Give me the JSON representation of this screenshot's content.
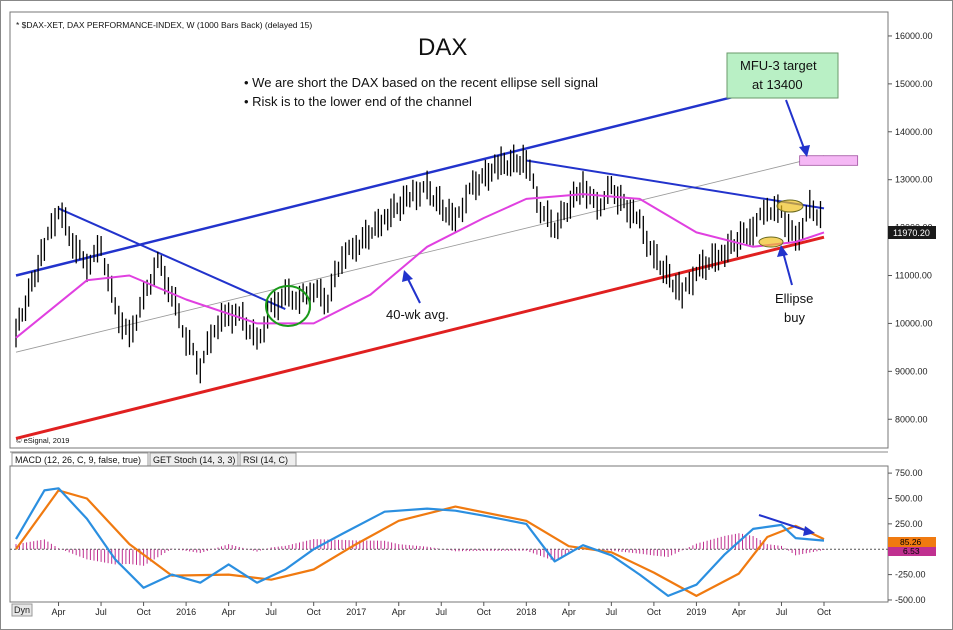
{
  "window": {
    "header": "* $DAX-XET, DAX PERFORMANCE-INDEX, W (1000 Bars Back) (delayed 15)",
    "copyright": "© eSignal, 2019"
  },
  "annotations": {
    "title": "DAX",
    "bullets": [
      "• We are short the DAX based on the recent ellipse sell signal",
      "• Risk is to the lower end of the channel"
    ],
    "target_box": [
      "MFU-3 target",
      "at 13400"
    ],
    "ma_label": "40-wk avg.",
    "ellipse_label": [
      "Ellipse",
      "buy"
    ],
    "colors": {
      "price": "#000000",
      "ma40": "#e040e0",
      "long_ma": "#9a9a9a",
      "upper_channel": "#2233cc",
      "lower_channel": "#e02020",
      "target_box_fill": "#b9f0c5",
      "target_zone": "#f5b8f5",
      "macd": "#2b8fe0",
      "signal": "#f07a10",
      "hist": "#c03090",
      "last_price_bg": "#1a1a1a"
    }
  },
  "panels": {
    "tabs": [
      "MACD (12, 26, C, 9, false, true)",
      "GET Stoch (14, 3, 3)",
      "RSI (14, C)"
    ],
    "dyn_label": "Dyn",
    "x_ticks": [
      "Apr",
      "Jul",
      "Oct",
      "2016",
      "Apr",
      "Jul",
      "Oct",
      "2017",
      "Apr",
      "Jul",
      "Oct",
      "2018",
      "Apr",
      "Jul",
      "Oct",
      "2019",
      "Apr",
      "Jul",
      "Oct"
    ]
  },
  "chart_data": [
    {
      "type": "candlestick",
      "title": "DAX",
      "y_ticks": [
        "16000.00",
        "15000.00",
        "14000.00",
        "13000.00",
        "12000.00",
        "11000.00",
        "10000.00",
        "9000.00",
        "8000.00"
      ],
      "ylim": [
        7400,
        16500
      ],
      "last_price": "11970.20",
      "x_start": "2015-01",
      "x_end": "2019-10",
      "price_path": [
        [
          "2015-01",
          9800
        ],
        [
          "2015-03",
          11600
        ],
        [
          "2015-04",
          12400
        ],
        [
          "2015-05",
          11700
        ],
        [
          "2015-06",
          11200
        ],
        [
          "2015-07",
          11600
        ],
        [
          "2015-08",
          10300
        ],
        [
          "2015-09",
          9700
        ],
        [
          "2015-10",
          10500
        ],
        [
          "2015-11",
          11300
        ],
        [
          "2015-12",
          10600
        ],
        [
          "2016-01",
          9700
        ],
        [
          "2016-02",
          9100
        ],
        [
          "2016-03",
          9900
        ],
        [
          "2016-04",
          10200
        ],
        [
          "2016-05",
          10100
        ],
        [
          "2016-06",
          9600
        ],
        [
          "2016-07",
          10300
        ],
        [
          "2016-08",
          10600
        ],
        [
          "2016-09",
          10500
        ],
        [
          "2016-10",
          10700
        ],
        [
          "2016-11",
          10500
        ],
        [
          "2016-12",
          11400
        ],
        [
          "2017-01",
          11600
        ],
        [
          "2017-03",
          12200
        ],
        [
          "2017-05",
          12700
        ],
        [
          "2017-06",
          12800
        ],
        [
          "2017-08",
          12100
        ],
        [
          "2017-09",
          12800
        ],
        [
          "2017-11",
          13300
        ],
        [
          "2018-01",
          13400
        ],
        [
          "2018-02",
          12400
        ],
        [
          "2018-03",
          12000
        ],
        [
          "2018-05",
          12900
        ],
        [
          "2018-06",
          12400
        ],
        [
          "2018-07",
          12800
        ],
        [
          "2018-09",
          12100
        ],
        [
          "2018-10",
          11400
        ],
        [
          "2018-12",
          10600
        ],
        [
          "2019-01",
          11100
        ],
        [
          "2019-03",
          11500
        ],
        [
          "2019-05",
          12000
        ],
        [
          "2019-06",
          12400
        ],
        [
          "2019-07",
          12300
        ],
        [
          "2019-08",
          11700
        ],
        [
          "2019-09",
          12400
        ],
        [
          "2019-10",
          12200
        ]
      ],
      "ma40_path": [
        [
          "2015-01",
          9700
        ],
        [
          "2015-06",
          10900
        ],
        [
          "2015-09",
          11000
        ],
        [
          "2016-01",
          10500
        ],
        [
          "2016-06",
          10000
        ],
        [
          "2016-10",
          10000
        ],
        [
          "2017-02",
          10600
        ],
        [
          "2017-06",
          11600
        ],
        [
          "2017-10",
          12200
        ],
        [
          "2018-01",
          12600
        ],
        [
          "2018-05",
          12700
        ],
        [
          "2018-09",
          12600
        ],
        [
          "2019-01",
          11900
        ],
        [
          "2019-05",
          11600
        ],
        [
          "2019-08",
          11700
        ],
        [
          "2019-10",
          11900
        ]
      ],
      "long_ma_path": [
        [
          "2015-01",
          9400
        ],
        [
          "2019-10",
          13500
        ]
      ],
      "channel_upper": [
        [
          "2015-01",
          11000
        ],
        [
          "2019-10",
          15200
        ]
      ],
      "channel_lower": [
        [
          "2015-01",
          7600
        ],
        [
          "2019-10",
          11800
        ]
      ],
      "trendline_down_2015": [
        [
          "2015-04",
          12400
        ],
        [
          "2016-08",
          10300
        ]
      ],
      "trendline_down_2018": [
        [
          "2018-01",
          13400
        ],
        [
          "2019-10",
          12400
        ]
      ],
      "target_zone": [
        13300,
        13500
      ]
    },
    {
      "type": "line",
      "title": "MACD (12, 26, C, 9, false, true)",
      "y_ticks": [
        "750.00",
        "500.00",
        "250.00",
        "-250.00",
        "-500.00"
      ],
      "ylim": [
        -520,
        820
      ],
      "values_label": [
        "85.26",
        "6.53"
      ],
      "macd_path": [
        [
          "2015-01",
          100
        ],
        [
          "2015-03",
          580
        ],
        [
          "2015-04",
          600
        ],
        [
          "2015-06",
          300
        ],
        [
          "2015-08",
          -100
        ],
        [
          "2015-10",
          -380
        ],
        [
          "2015-12",
          -250
        ],
        [
          "2016-02",
          -330
        ],
        [
          "2016-04",
          -150
        ],
        [
          "2016-06",
          -330
        ],
        [
          "2016-08",
          -200
        ],
        [
          "2016-10",
          0
        ],
        [
          "2016-12",
          150
        ],
        [
          "2017-03",
          370
        ],
        [
          "2017-06",
          400
        ],
        [
          "2017-08",
          380
        ],
        [
          "2017-10",
          330
        ],
        [
          "2018-01",
          250
        ],
        [
          "2018-03",
          -120
        ],
        [
          "2018-05",
          40
        ],
        [
          "2018-07",
          -60
        ],
        [
          "2018-09",
          -250
        ],
        [
          "2018-11",
          -460
        ],
        [
          "2019-01",
          -350
        ],
        [
          "2019-03",
          -50
        ],
        [
          "2019-05",
          200
        ],
        [
          "2019-07",
          240
        ],
        [
          "2019-08",
          110
        ],
        [
          "2019-10",
          85
        ]
      ],
      "signal_path": [
        [
          "2015-01",
          0
        ],
        [
          "2015-04",
          580
        ],
        [
          "2015-06",
          500
        ],
        [
          "2015-09",
          50
        ],
        [
          "2015-12",
          -260
        ],
        [
          "2016-04",
          -250
        ],
        [
          "2016-07",
          -300
        ],
        [
          "2016-10",
          -200
        ],
        [
          "2017-01",
          50
        ],
        [
          "2017-04",
          280
        ],
        [
          "2017-08",
          420
        ],
        [
          "2018-01",
          280
        ],
        [
          "2018-04",
          30
        ],
        [
          "2018-07",
          -30
        ],
        [
          "2018-10",
          -230
        ],
        [
          "2019-01",
          -460
        ],
        [
          "2019-04",
          -240
        ],
        [
          "2019-06",
          120
        ],
        [
          "2019-08",
          230
        ],
        [
          "2019-10",
          100
        ]
      ]
    }
  ]
}
